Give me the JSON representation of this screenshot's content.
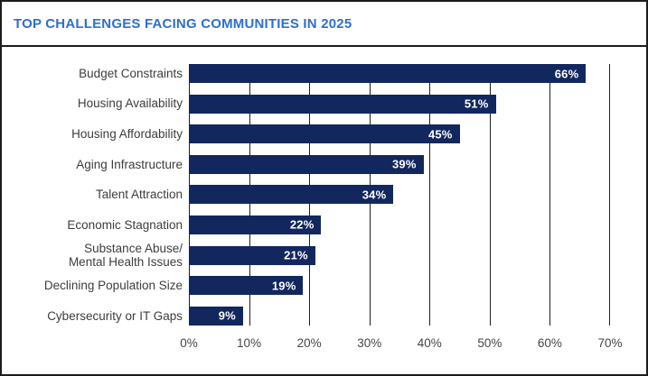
{
  "header": {
    "title": "TOP CHALLENGES FACING COMMUNITIES IN 2025"
  },
  "chart_data": {
    "type": "bar",
    "orientation": "horizontal",
    "title": "TOP CHALLENGES FACING COMMUNITIES IN 2025",
    "categories": [
      "Budget Constraints",
      "Housing Availability",
      "Housing Affordability",
      "Aging Infrastructure",
      "Talent Attraction",
      "Economic Stagnation",
      "Substance Abuse/\nMental Health Issues",
      "Declining Population Size",
      "Cybersecurity or IT Gaps"
    ],
    "values": [
      66,
      51,
      45,
      39,
      34,
      22,
      21,
      19,
      9
    ],
    "value_labels": [
      "66%",
      "51%",
      "45%",
      "39%",
      "34%",
      "22%",
      "21%",
      "19%",
      "9%"
    ],
    "x_ticks": [
      "0%",
      "10%",
      "20%",
      "30%",
      "40%",
      "50%",
      "60%",
      "70%"
    ],
    "x_tick_values": [
      0,
      10,
      20,
      30,
      40,
      50,
      60,
      70
    ],
    "xlim": [
      0,
      70
    ],
    "xlabel": "",
    "ylabel": "",
    "grid": "vertical",
    "legend": "none",
    "colors": {
      "bar": "#12275d",
      "title": "#2e6fcf",
      "category_label": "#3d3d3d",
      "tick_label": "#454545",
      "gridline": "#1f1f1f",
      "value_label": "#ffffff",
      "background": "#ffffff",
      "border": "#1c1c1c"
    }
  }
}
